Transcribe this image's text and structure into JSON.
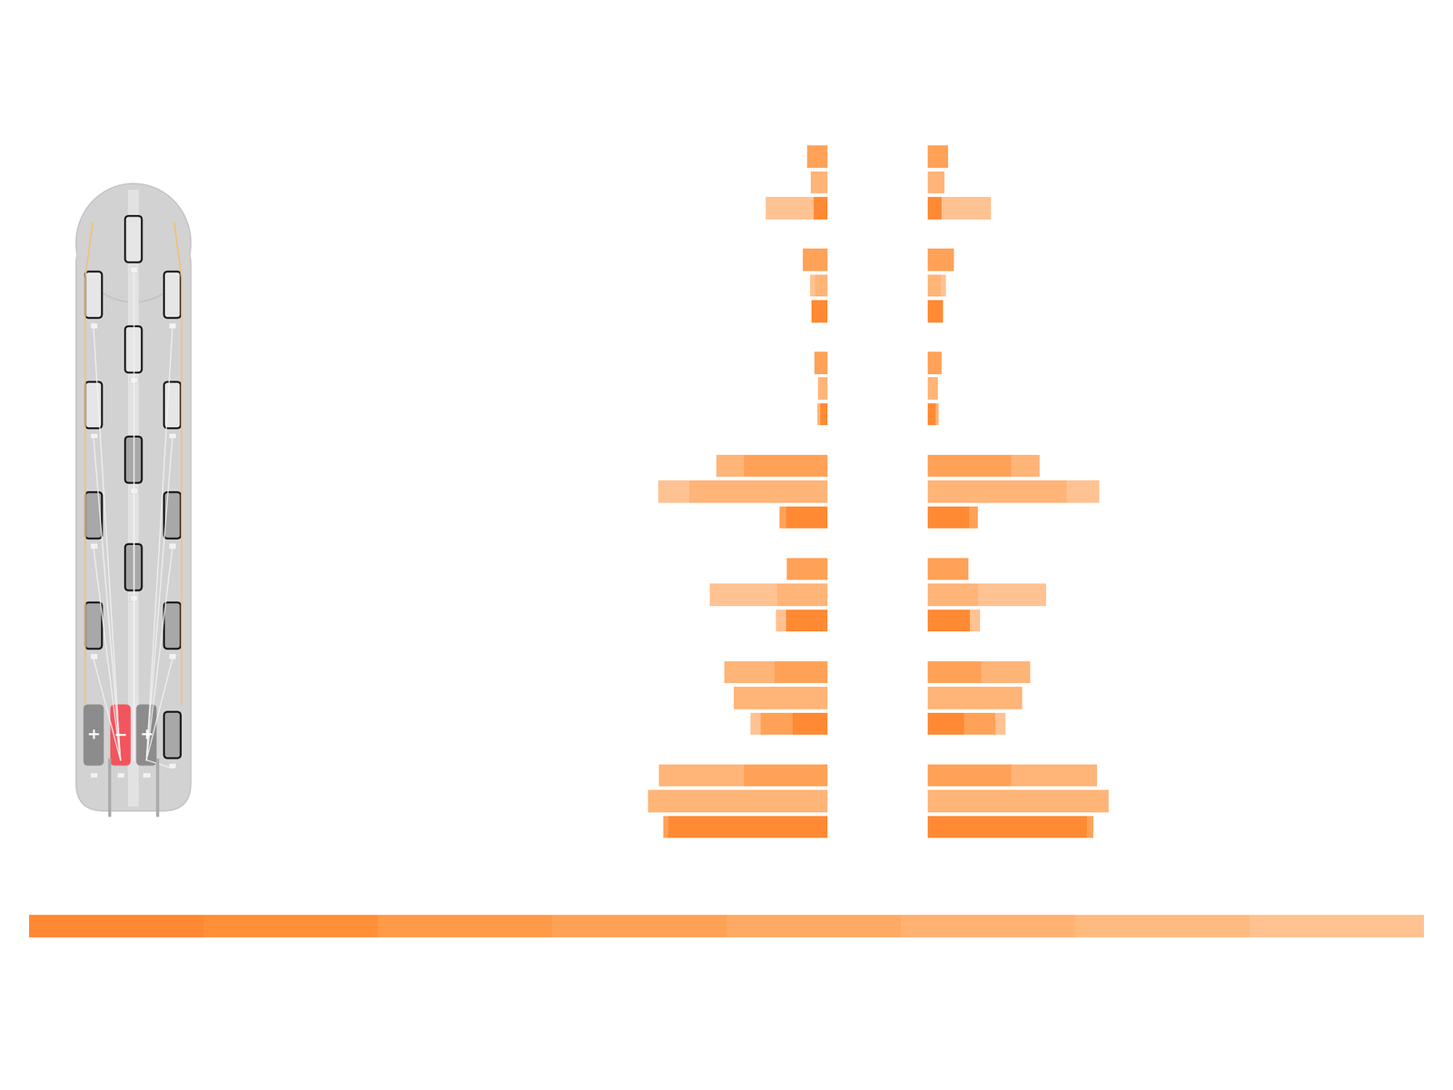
{
  "chart_data": [
    {
      "type": "bar",
      "orientation": "horizontal",
      "tick_labels": false,
      "categories": [
        null,
        null,
        null,
        null,
        null,
        null,
        null,
        null,
        null,
        null,
        null,
        null,
        null,
        null,
        null,
        null,
        null,
        null,
        null,
        null,
        null,
        null,
        null,
        null,
        null,
        null,
        null
      ],
      "xlim": [
        200,
        0
      ],
      "xticks": [],
      "series": [
        {
          "values": [
            22,
            18,
            67,
            null,
            27,
            19,
            17,
            null,
            14,
            10,
            11,
            null,
            120,
            183,
            52,
            null,
            44,
            127,
            56,
            null,
            111,
            101,
            83,
            null,
            182,
            194,
            177
          ],
          "colors": [
            "#FFA258",
            "#FFB478",
            "#FFC292",
            null,
            "#FFA258",
            "#FFC292",
            "#FF8A33",
            null,
            "#FFA258",
            "#FFB478",
            "#FFB478",
            null,
            "#FFB478",
            "#FFC292",
            "#FFA258",
            null,
            "#FFA258",
            "#FFC292",
            "#FFC292",
            null,
            "#FFB478",
            "#FFB478",
            "#FFC292",
            null,
            "#FFB478",
            "#FFB478",
            "#FFA258"
          ]
        },
        {
          "values": [
            null,
            null,
            15,
            null,
            null,
            13,
            null,
            null,
            null,
            null,
            8,
            null,
            90,
            149,
            45,
            null,
            null,
            54,
            45,
            null,
            57,
            null,
            72,
            null,
            90,
            null,
            172
          ],
          "colors": [
            null,
            null,
            "#FF8A33",
            null,
            null,
            "#FFB478",
            null,
            null,
            null,
            null,
            "#FF8A33",
            null,
            "#FFA258",
            "#FFB478",
            "#FF8A33",
            null,
            null,
            "#FFB478",
            "#FF8A33",
            null,
            "#FFA258",
            null,
            "#FFA258",
            null,
            "#FFA258",
            null,
            "#FF8A33"
          ]
        },
        {
          "values": [
            null,
            null,
            null,
            null,
            null,
            null,
            null,
            null,
            null,
            null,
            null,
            null,
            null,
            null,
            null,
            null,
            null,
            null,
            null,
            null,
            null,
            null,
            38,
            null,
            null,
            null,
            null
          ],
          "colors": [
            null,
            null,
            null,
            null,
            null,
            null,
            null,
            null,
            null,
            null,
            null,
            null,
            null,
            null,
            null,
            null,
            null,
            null,
            null,
            null,
            null,
            null,
            "#FF8A33",
            null,
            null,
            null,
            null
          ]
        }
      ]
    },
    {
      "type": "bar",
      "orientation": "horizontal",
      "tick_labels": false,
      "categories": [
        null,
        null,
        null,
        null,
        null,
        null,
        null,
        null,
        null,
        null,
        null,
        null,
        null,
        null,
        null,
        null,
        null,
        null,
        null,
        null,
        null,
        null,
        null,
        null,
        null,
        null,
        null
      ],
      "xlim": [
        0,
        200
      ],
      "xticks": [],
      "series": [
        {
          "values": [
            22,
            18,
            68,
            null,
            28,
            20,
            17,
            null,
            15,
            11,
            12,
            null,
            121,
            185,
            54,
            null,
            44,
            128,
            57,
            null,
            111,
            102,
            84,
            null,
            183,
            195,
            179
          ],
          "colors": [
            "#FFA258",
            "#FFB478",
            "#FFC292",
            null,
            "#FFA258",
            "#FFC292",
            "#FF8A33",
            null,
            "#FFA258",
            "#FFB478",
            "#FFB478",
            null,
            "#FFB478",
            "#FFC292",
            "#FFA258",
            null,
            "#FFA258",
            "#FFC292",
            "#FFC292",
            null,
            "#FFB478",
            "#FFB478",
            "#FFC292",
            null,
            "#FFB478",
            "#FFB478",
            "#FFA258"
          ]
        },
        {
          "values": [
            null,
            null,
            15,
            null,
            null,
            14,
            null,
            null,
            null,
            null,
            9,
            null,
            90,
            150,
            45,
            null,
            null,
            54,
            46,
            null,
            58,
            null,
            73,
            null,
            90,
            null,
            172
          ],
          "colors": [
            null,
            null,
            "#FF8A33",
            null,
            null,
            "#FFB478",
            null,
            null,
            null,
            null,
            "#FF8A33",
            null,
            "#FFA258",
            "#FFB478",
            "#FF8A33",
            null,
            null,
            "#FFB478",
            "#FF8A33",
            null,
            "#FFA258",
            null,
            "#FFA258",
            null,
            "#FFA258",
            null,
            "#FF8A33"
          ]
        },
        {
          "values": [
            null,
            null,
            null,
            null,
            null,
            null,
            null,
            null,
            null,
            null,
            null,
            null,
            null,
            null,
            null,
            null,
            null,
            null,
            null,
            null,
            null,
            null,
            39,
            null,
            null,
            null,
            null
          ],
          "colors": [
            null,
            null,
            null,
            null,
            null,
            null,
            null,
            null,
            null,
            null,
            null,
            null,
            null,
            null,
            null,
            null,
            null,
            null,
            null,
            null,
            null,
            null,
            "#FF8A33",
            null,
            null,
            null,
            null
          ]
        }
      ]
    }
  ],
  "electrode_labels": [
    "+",
    "−",
    "+"
  ]
}
